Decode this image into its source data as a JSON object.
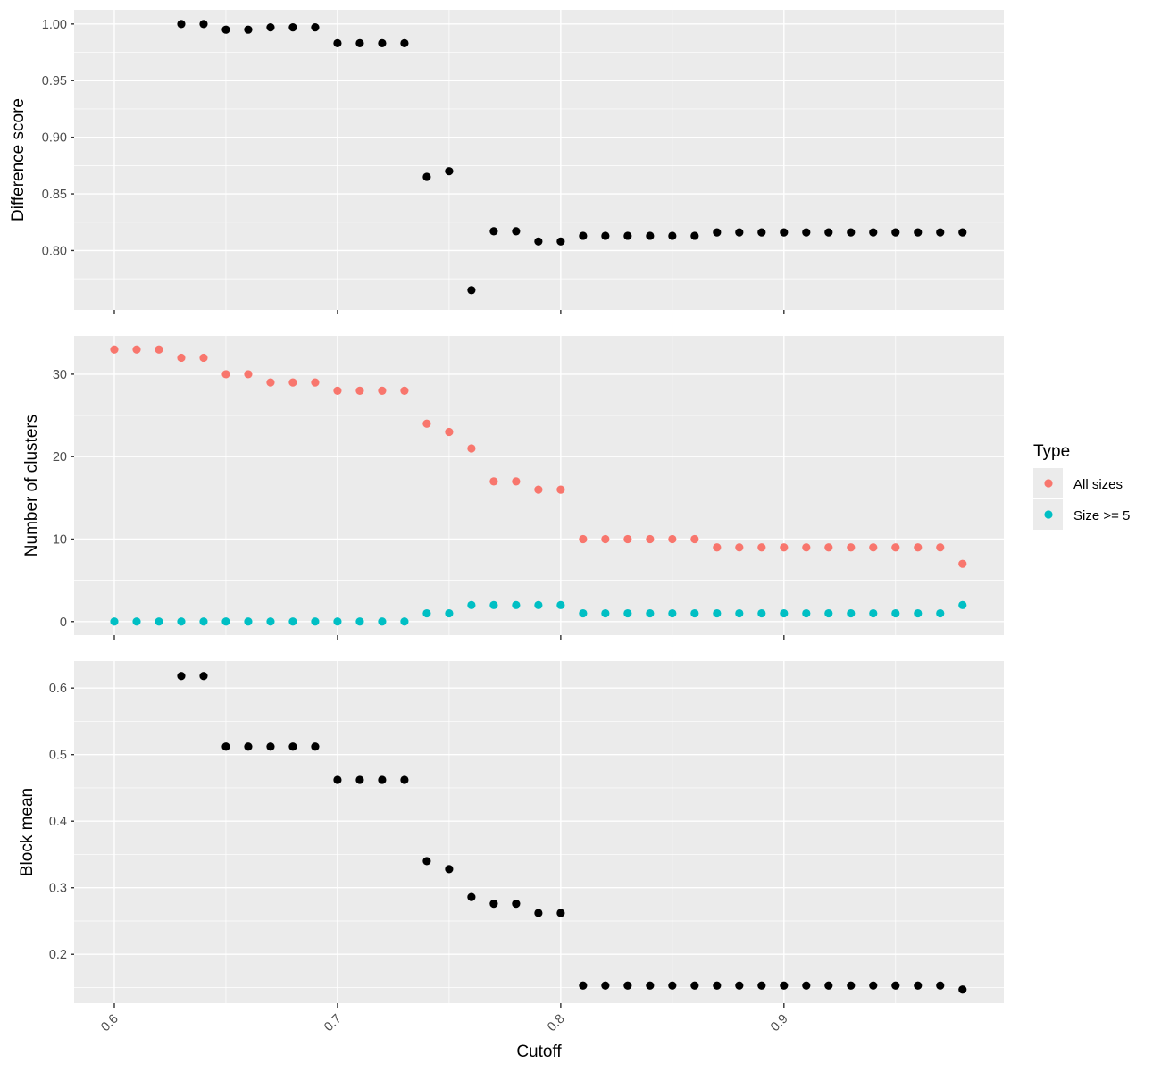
{
  "chart_data": [
    {
      "type": "scatter",
      "title": "",
      "ylabel": "Difference score",
      "xlabel": "",
      "xlim": [
        0.582,
        0.9985
      ],
      "ylim": [
        0.7475,
        1.0125
      ],
      "yticks": [
        0.8,
        0.85,
        0.9,
        0.95,
        1.0
      ],
      "ytick_labels": [
        "0.80",
        "0.85",
        "0.90",
        "0.95",
        "1.00"
      ],
      "grid": true,
      "series": [
        {
          "color": "#000000",
          "x": [
            0.63,
            0.64,
            0.65,
            0.66,
            0.67,
            0.68,
            0.69,
            0.7,
            0.71,
            0.72,
            0.73,
            0.74,
            0.75,
            0.76,
            0.77,
            0.78,
            0.79,
            0.8,
            0.81,
            0.82,
            0.83,
            0.84,
            0.85,
            0.86,
            0.87,
            0.88,
            0.89,
            0.9,
            0.91,
            0.92,
            0.93,
            0.94,
            0.95,
            0.96,
            0.97,
            0.98
          ],
          "y": [
            1.0,
            1.0,
            0.995,
            0.995,
            0.997,
            0.997,
            0.997,
            0.983,
            0.983,
            0.983,
            0.983,
            0.865,
            0.87,
            0.765,
            0.817,
            0.817,
            0.808,
            0.808,
            0.813,
            0.813,
            0.813,
            0.813,
            0.813,
            0.813,
            0.816,
            0.816,
            0.816,
            0.816,
            0.816,
            0.816,
            0.816,
            0.816,
            0.816,
            0.816,
            0.816,
            0.816
          ]
        }
      ]
    },
    {
      "type": "scatter",
      "title": "",
      "ylabel": "Number of clusters",
      "xlabel": "",
      "xlim": [
        0.582,
        0.9985
      ],
      "ylim": [
        -1.65,
        34.65
      ],
      "yticks": [
        0,
        10,
        20,
        30
      ],
      "ytick_labels": [
        "0",
        "10",
        "20",
        "30"
      ],
      "grid": true,
      "legend": {
        "title": "Type",
        "position": "right",
        "entries": [
          "All sizes",
          "Size >= 5"
        ]
      },
      "series": [
        {
          "name": "All sizes",
          "color": "#f8766d",
          "x": [
            0.6,
            0.61,
            0.62,
            0.63,
            0.64,
            0.65,
            0.66,
            0.67,
            0.68,
            0.69,
            0.7,
            0.71,
            0.72,
            0.73,
            0.74,
            0.75,
            0.76,
            0.77,
            0.78,
            0.79,
            0.8,
            0.81,
            0.82,
            0.83,
            0.84,
            0.85,
            0.86,
            0.87,
            0.88,
            0.89,
            0.9,
            0.91,
            0.92,
            0.93,
            0.94,
            0.95,
            0.96,
            0.97,
            0.98
          ],
          "y": [
            33,
            33,
            33,
            32,
            32,
            30,
            30,
            29,
            29,
            29,
            28,
            28,
            28,
            28,
            24,
            23,
            21,
            17,
            17,
            16,
            16,
            10,
            10,
            10,
            10,
            10,
            10,
            9,
            9,
            9,
            9,
            9,
            9,
            9,
            9,
            9,
            9,
            9,
            7
          ]
        },
        {
          "name": "Size >= 5",
          "color": "#00bfc4",
          "x": [
            0.6,
            0.61,
            0.62,
            0.63,
            0.64,
            0.65,
            0.66,
            0.67,
            0.68,
            0.69,
            0.7,
            0.71,
            0.72,
            0.73,
            0.74,
            0.75,
            0.76,
            0.77,
            0.78,
            0.79,
            0.8,
            0.81,
            0.82,
            0.83,
            0.84,
            0.85,
            0.86,
            0.87,
            0.88,
            0.89,
            0.9,
            0.91,
            0.92,
            0.93,
            0.94,
            0.95,
            0.96,
            0.97,
            0.98
          ],
          "y": [
            0,
            0,
            0,
            0,
            0,
            0,
            0,
            0,
            0,
            0,
            0,
            0,
            0,
            0,
            1,
            1,
            2,
            2,
            2,
            2,
            2,
            1,
            1,
            1,
            1,
            1,
            1,
            1,
            1,
            1,
            1,
            1,
            1,
            1,
            1,
            1,
            1,
            1,
            2
          ]
        }
      ]
    },
    {
      "type": "scatter",
      "title": "",
      "ylabel": "Block mean",
      "xlabel": "Cutoff",
      "xlim": [
        0.582,
        0.9985
      ],
      "ylim": [
        0.1265,
        0.6405
      ],
      "yticks": [
        0.2,
        0.3,
        0.4,
        0.5,
        0.6
      ],
      "ytick_labels": [
        "0.2",
        "0.3",
        "0.4",
        "0.5",
        "0.6"
      ],
      "xticks": [
        0.6,
        0.7,
        0.8,
        0.9
      ],
      "xtick_labels": [
        "0.6",
        "0.7",
        "0.8",
        "0.9"
      ],
      "grid": true,
      "series": [
        {
          "color": "#000000",
          "x": [
            0.63,
            0.64,
            0.65,
            0.66,
            0.67,
            0.68,
            0.69,
            0.7,
            0.71,
            0.72,
            0.73,
            0.74,
            0.75,
            0.76,
            0.77,
            0.78,
            0.79,
            0.8,
            0.81,
            0.82,
            0.83,
            0.84,
            0.85,
            0.86,
            0.87,
            0.88,
            0.89,
            0.9,
            0.91,
            0.92,
            0.93,
            0.94,
            0.95,
            0.96,
            0.97,
            0.98
          ],
          "y": [
            0.618,
            0.618,
            0.512,
            0.512,
            0.512,
            0.512,
            0.512,
            0.462,
            0.462,
            0.462,
            0.462,
            0.34,
            0.328,
            0.286,
            0.276,
            0.276,
            0.262,
            0.262,
            0.153,
            0.153,
            0.153,
            0.153,
            0.153,
            0.153,
            0.153,
            0.153,
            0.153,
            0.153,
            0.153,
            0.153,
            0.153,
            0.153,
            0.153,
            0.153,
            0.153,
            0.147
          ]
        }
      ]
    }
  ]
}
